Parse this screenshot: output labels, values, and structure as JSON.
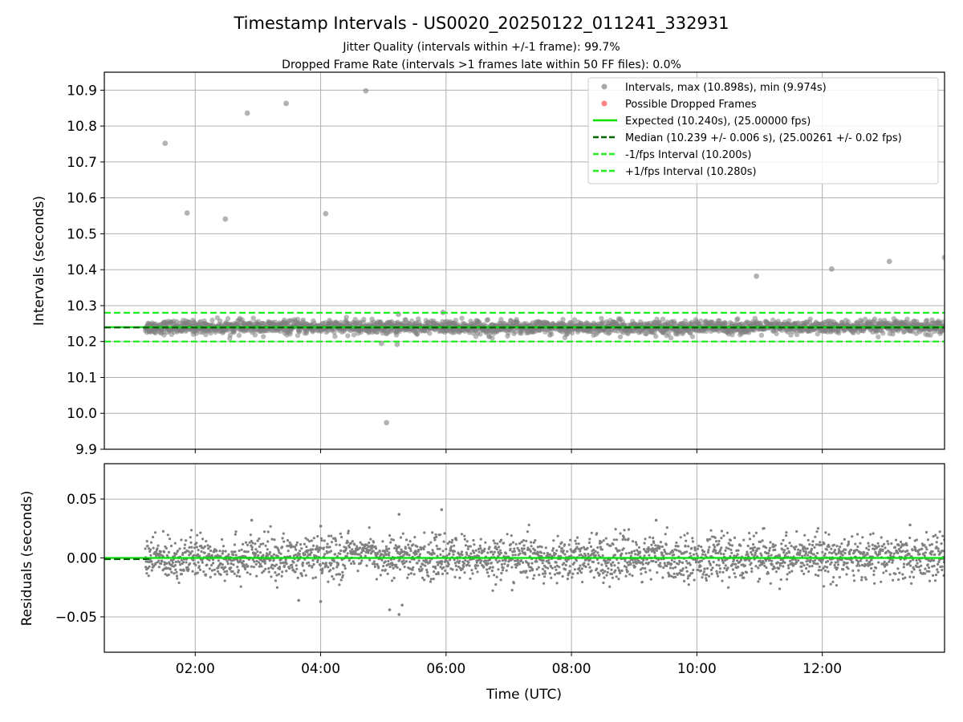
{
  "figure": {
    "title": "Timestamp Intervals - US0020_20250122_011241_332931",
    "subtitle_line1": "Jitter Quality (intervals within +/-1 frame): 99.7%",
    "subtitle_line2": "Dropped Frame Rate (intervals >1 frames late within 50 FF files): 0.0%"
  },
  "colors": {
    "points": "#808080",
    "dropped": "#ff4c4c",
    "expected": "#00e000",
    "median": "#006400",
    "interval_band": "#22ee22",
    "grid": "#b0b0b0"
  },
  "chart_data": [
    {
      "type": "scatter",
      "panel": "top",
      "xlabel": "",
      "ylabel": "Intervals (seconds)",
      "ylim": [
        9.9,
        10.95
      ],
      "xlim_hours": [
        0.55,
        13.95
      ],
      "yticks": [
        "9.9",
        "10.0",
        "10.1",
        "10.2",
        "10.3",
        "10.4",
        "10.5",
        "10.6",
        "10.7",
        "10.8",
        "10.9"
      ],
      "grid": true,
      "legend_position": "top-right",
      "legend": [
        {
          "label": "Intervals, max (10.898s), min (9.974s)",
          "kind": "marker",
          "color": "#808080"
        },
        {
          "label": "Possible Dropped Frames",
          "kind": "marker",
          "color": "#ff4c4c"
        },
        {
          "label": "Expected (10.240s), (25.00000 fps)",
          "kind": "solid",
          "color": "#00e000"
        },
        {
          "label": "Median (10.239 +/- 0.006 s), (25.00261 +/- 0.02 fps)",
          "kind": "dashed",
          "color": "#006400"
        },
        {
          "label": "-1/fps Interval (10.200s)",
          "kind": "dashed",
          "color": "#22ee22"
        },
        {
          "label": "+1/fps Interval (10.280s)",
          "kind": "dashed",
          "color": "#22ee22"
        }
      ],
      "reference_lines": {
        "expected": 10.24,
        "median": 10.239,
        "lower": 10.2,
        "upper": 10.28
      },
      "main_band": {
        "x_start_hours": 1.2,
        "x_end_hours": 13.95,
        "center": 10.24,
        "spread": 0.01
      },
      "outliers": [
        {
          "x_hours": 1.52,
          "y": 10.752
        },
        {
          "x_hours": 1.87,
          "y": 10.558
        },
        {
          "x_hours": 2.48,
          "y": 10.541
        },
        {
          "x_hours": 2.83,
          "y": 10.836
        },
        {
          "x_hours": 3.45,
          "y": 10.863
        },
        {
          "x_hours": 4.08,
          "y": 10.556
        },
        {
          "x_hours": 4.72,
          "y": 10.898
        },
        {
          "x_hours": 5.05,
          "y": 9.974
        },
        {
          "x_hours": 4.97,
          "y": 10.195
        },
        {
          "x_hours": 5.22,
          "y": 10.192
        },
        {
          "x_hours": 5.24,
          "y": 10.276
        },
        {
          "x_hours": 5.95,
          "y": 10.281
        },
        {
          "x_hours": 10.95,
          "y": 10.382
        },
        {
          "x_hours": 12.15,
          "y": 10.402
        },
        {
          "x_hours": 13.07,
          "y": 10.423
        },
        {
          "x_hours": 13.95,
          "y": 10.434
        }
      ]
    },
    {
      "type": "scatter",
      "panel": "bottom",
      "xlabel": "Time (UTC)",
      "ylabel": "Residuals (seconds)",
      "ylim": [
        -0.08,
        0.08
      ],
      "xlim_hours": [
        0.55,
        13.95
      ],
      "yticks": [
        "0.05",
        "0.00",
        "−0.05"
      ],
      "ytick_values": [
        0.05,
        0.0,
        -0.05
      ],
      "xticks": [
        "02:00",
        "04:00",
        "06:00",
        "08:00",
        "10:00",
        "12:00"
      ],
      "xtick_hours": [
        2,
        4,
        6,
        8,
        10,
        12
      ],
      "grid": true,
      "reference_lines": {
        "expected": 0.0,
        "median": -0.001
      },
      "notable_residuals": [
        {
          "x_hours": 2.9,
          "y": 0.032
        },
        {
          "x_hours": 4.0,
          "y": 0.027
        },
        {
          "x_hours": 4.0,
          "y": -0.037
        },
        {
          "x_hours": 3.65,
          "y": -0.036
        },
        {
          "x_hours": 5.1,
          "y": -0.044
        },
        {
          "x_hours": 5.25,
          "y": 0.037
        },
        {
          "x_hours": 5.3,
          "y": -0.04
        },
        {
          "x_hours": 5.25,
          "y": -0.048
        },
        {
          "x_hours": 5.93,
          "y": 0.041
        },
        {
          "x_hours": 9.35,
          "y": 0.032
        },
        {
          "x_hours": 13.4,
          "y": 0.028
        }
      ]
    }
  ]
}
